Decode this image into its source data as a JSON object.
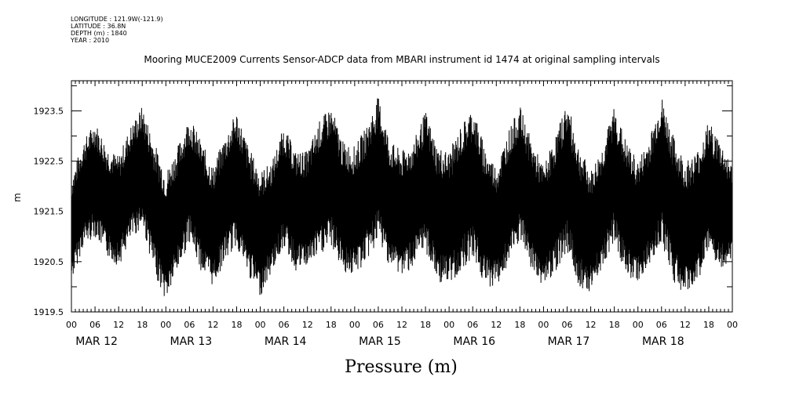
{
  "meta": {
    "longitude": "LONGITUDE : 121.9W(-121.9)",
    "latitude": "LATITUDE : 36.8N",
    "depth": "DEPTH (m) : 1840",
    "year": "YEAR : 2010"
  },
  "chart_data": {
    "type": "line",
    "title": "Mooring MUCE2009 Currents Sensor-ADCP data from MBARI instrument id 1474 at original sampling intervals",
    "xlabel": "Pressure (m)",
    "ylabel": "m",
    "ylim": [
      1919.5,
      1924.1
    ],
    "yticks": [
      "1919.5",
      "1920.5",
      "1921.5",
      "1922.5",
      "1923.5"
    ],
    "x_hour_ticks": [
      "00",
      "06",
      "12",
      "18",
      "00",
      "06",
      "12",
      "18",
      "00",
      "06",
      "12",
      "18",
      "00",
      "06",
      "12",
      "18",
      "00",
      "06",
      "12",
      "18",
      "00",
      "06",
      "12",
      "18",
      "00",
      "06",
      "12",
      "18",
      "00"
    ],
    "day_labels": [
      "MAR 12",
      "MAR 13",
      "MAR 14",
      "MAR 15",
      "MAR 16",
      "MAR 17",
      "MAR 18"
    ],
    "xlim_hours": [
      0,
      168
    ],
    "series": [
      {
        "x_hours": [
          0,
          3,
          6,
          9,
          12,
          15,
          18,
          21,
          24,
          27,
          30,
          33,
          36,
          39,
          42,
          45,
          48,
          51,
          54,
          57,
          60,
          63,
          66,
          69,
          72,
          75,
          78,
          81,
          84,
          87,
          90,
          93,
          96,
          99,
          102,
          105,
          108,
          111,
          114,
          117,
          120,
          123,
          126,
          129,
          132,
          135,
          138,
          141,
          144,
          147,
          150,
          153,
          156,
          159,
          162,
          165,
          168
        ],
        "upper": [
          1922.2,
          1922.9,
          1923.3,
          1922.8,
          1922.6,
          1923.2,
          1923.6,
          1922.9,
          1922.3,
          1922.8,
          1923.4,
          1922.9,
          1922.4,
          1923.0,
          1923.5,
          1922.8,
          1922.3,
          1922.5,
          1923.2,
          1922.7,
          1922.7,
          1923.3,
          1923.6,
          1922.9,
          1922.8,
          1923.2,
          1923.8,
          1922.9,
          1922.7,
          1922.9,
          1923.5,
          1922.8,
          1922.7,
          1923.2,
          1923.6,
          1922.8,
          1922.4,
          1923.1,
          1923.6,
          1922.9,
          1922.4,
          1923.0,
          1923.7,
          1922.8,
          1922.3,
          1922.8,
          1923.6,
          1922.9,
          1922.5,
          1923.0,
          1923.8,
          1923.0,
          1922.5,
          1922.7,
          1923.3,
          1922.9,
          1922.4
        ],
        "lower": [
          1920.1,
          1920.8,
          1921.0,
          1920.6,
          1920.4,
          1920.9,
          1921.2,
          1920.3,
          1919.7,
          1920.3,
          1920.9,
          1920.3,
          1920.0,
          1920.5,
          1920.8,
          1920.2,
          1919.8,
          1920.3,
          1920.8,
          1920.3,
          1920.4,
          1920.6,
          1920.8,
          1920.3,
          1920.2,
          1920.5,
          1920.9,
          1920.4,
          1920.2,
          1920.4,
          1920.7,
          1920.1,
          1920.0,
          1920.3,
          1920.6,
          1920.0,
          1920.0,
          1920.4,
          1920.9,
          1920.3,
          1920.0,
          1920.3,
          1920.7,
          1920.0,
          1919.9,
          1920.4,
          1920.9,
          1920.2,
          1920.1,
          1920.4,
          1920.9,
          1920.1,
          1919.8,
          1920.1,
          1920.6,
          1920.3,
          1920.6
        ]
      }
    ]
  }
}
